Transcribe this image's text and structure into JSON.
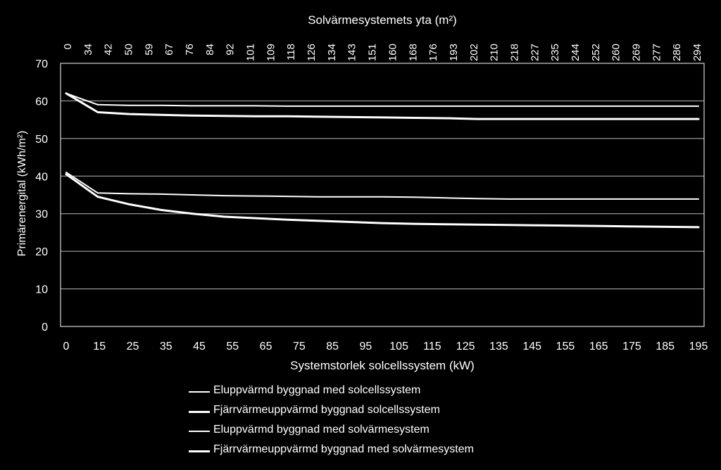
{
  "chart_data": {
    "type": "line",
    "x_top_title": "Solvärmesystemets yta (m²)",
    "xlabel": "Systemstorlek solcellssystem (kW)",
    "ylabel": "Primärenergital (kWh/m²)",
    "ylim": [
      0,
      70
    ],
    "yticks": [
      0,
      10,
      20,
      30,
      40,
      50,
      60,
      70
    ],
    "x_bottom_ticks": [
      0,
      15,
      25,
      35,
      45,
      55,
      65,
      75,
      85,
      95,
      105,
      115,
      125,
      135,
      145,
      155,
      165,
      175,
      185,
      195
    ],
    "x_top_ticks": [
      "0",
      "34",
      "42",
      "50",
      "59",
      "67",
      "76",
      "84",
      "92",
      "101",
      "109",
      "118",
      "126",
      "134",
      "143",
      "151",
      "160",
      "168",
      "176",
      "193",
      "202",
      "210",
      "218",
      "227",
      "235",
      "244",
      "252",
      "260",
      "269",
      "277",
      "286",
      "294"
    ],
    "x": [
      0,
      10,
      20,
      30,
      40,
      50,
      60,
      70,
      80,
      90,
      100,
      110,
      120,
      130,
      140,
      150,
      160,
      170,
      180,
      190,
      200
    ],
    "series": [
      {
        "name": "Eluppvärmd byggnad med solcellssystem",
        "stroke_width": 2,
        "values": [
          62,
          59,
          58.8,
          58.8,
          58.7,
          58.7,
          58.7,
          58.6,
          58.6,
          58.6,
          58.6,
          58.6,
          58.6,
          58.6,
          58.6,
          58.6,
          58.6,
          58.6,
          58.6,
          58.6,
          58.6
        ]
      },
      {
        "name": "Fjärrvärmeuppvärmd byggnad solcellssystem",
        "stroke_width": 3,
        "values": [
          62,
          57,
          56.5,
          56.3,
          56.1,
          56,
          55.9,
          55.9,
          55.8,
          55.7,
          55.6,
          55.5,
          55.4,
          55.2,
          55.2,
          55.2,
          55.2,
          55.2,
          55.2,
          55.2,
          55.2
        ]
      },
      {
        "name": "Eluppvärmd byggnad med solvärmesystem",
        "stroke_width": 2,
        "values": [
          41,
          35.5,
          35.3,
          35.2,
          35,
          34.8,
          34.7,
          34.6,
          34.5,
          34.5,
          34.5,
          34.4,
          34.2,
          34.0,
          33.9,
          33.9,
          33.9,
          33.9,
          33.9,
          33.9,
          33.9
        ]
      },
      {
        "name": "Fjärrvärmeuppvärmd byggnad med solvärmesystem",
        "stroke_width": 3,
        "values": [
          40.5,
          34.5,
          32.5,
          31,
          30,
          29.2,
          28.8,
          28.4,
          28.1,
          27.8,
          27.5,
          27.3,
          27.2,
          27.1,
          27,
          26.9,
          26.8,
          26.7,
          26.6,
          26.5,
          26.4
        ]
      }
    ],
    "grid": true,
    "legend": "bottom"
  }
}
